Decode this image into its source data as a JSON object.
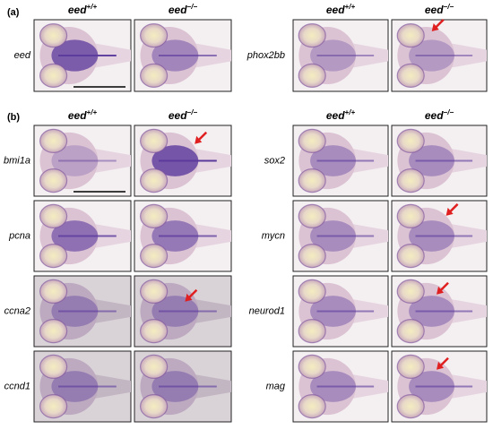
{
  "panels": [
    {
      "label": "(a)",
      "groups": [
        {
          "columns": [
            {
              "gene": "eed",
              "genotype": "+/+"
            },
            {
              "gene": "eed",
              "genotype": "−/−"
            }
          ],
          "rows": [
            "eed"
          ]
        },
        {
          "columns": [
            {
              "gene": "eed",
              "genotype": "+/+"
            },
            {
              "gene": "eed",
              "genotype": "−/−"
            }
          ],
          "rows": [
            "phox2bb"
          ]
        }
      ]
    },
    {
      "label": "(b)",
      "groups": [
        {
          "columns": [
            {
              "gene": "eed",
              "genotype": "+/+"
            },
            {
              "gene": "eed",
              "genotype": "−/−"
            }
          ],
          "rows": [
            "bmi1a",
            "pcna",
            "ccna2",
            "ccnd1"
          ]
        },
        {
          "columns": [
            {
              "gene": "eed",
              "genotype": "+/+"
            },
            {
              "gene": "eed",
              "genotype": "−/−"
            }
          ],
          "rows": [
            "sox2",
            "mycn",
            "neurod1",
            "mag"
          ]
        }
      ]
    }
  ]
}
